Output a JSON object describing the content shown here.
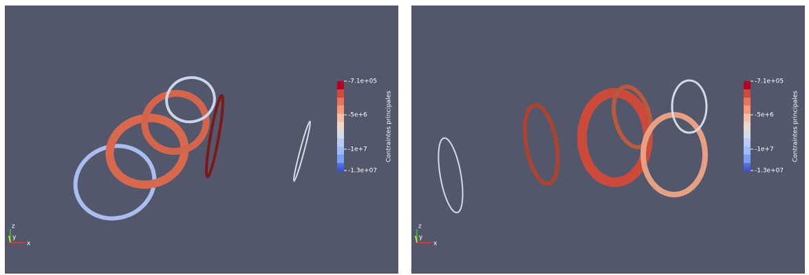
{
  "views": [
    {
      "colorbar": {
        "title": "Contraintes principales",
        "labels": [
          "-7.1e+05",
          "-5e+6",
          "-1e+7",
          "-1.3e+07"
        ]
      },
      "axes": {
        "x": "x",
        "y": "y",
        "z": "z"
      }
    },
    {
      "colorbar": {
        "title": "Contraintes principales",
        "labels": [
          "-7.1e+05",
          "-5e+6",
          "-1e+7",
          "-1.3e+07"
        ]
      },
      "axes": {
        "x": "x",
        "y": "y",
        "z": "z"
      }
    }
  ]
}
